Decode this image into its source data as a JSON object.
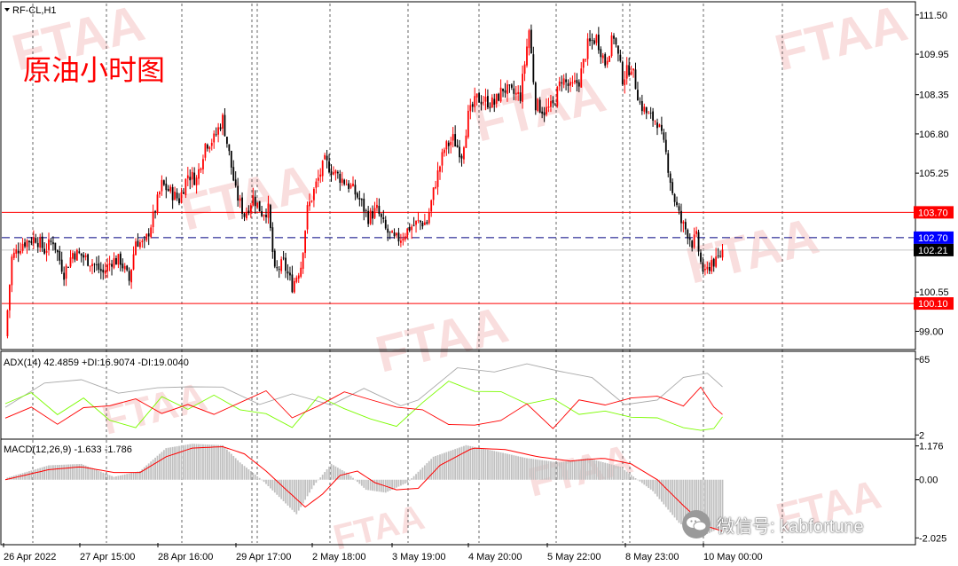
{
  "symbol_header": "RF-CL,H1",
  "chart_title": "原油小时图",
  "watermark_text": "FTAA",
  "wechat_label": "微信号: kabfortune",
  "colors": {
    "bull": "#ff0000",
    "bear": "#000000",
    "adx": "#a9a9a9",
    "plus_di": "#7cfc00",
    "minus_di": "#ff0000",
    "macd_hist": "#c0c0c0",
    "macd_signal": "#ff0000",
    "level_line": "#ff0000",
    "bid_line": "#000080",
    "watermark": "#f4c2c2"
  },
  "time_labels": [
    "26 Apr 2022",
    "27 Apr 15:00",
    "28 Apr 16:00",
    "29 Apr 17:00",
    "2 May 18:00",
    "3 May 19:00",
    "4 May 20:00",
    "5 May 22:00",
    "8 May 23:00",
    "10 May 00:00"
  ],
  "chart_data": [
    {
      "type": "candlestick",
      "panel": "price",
      "title": "RF-CL,H1",
      "timeframe": "H1",
      "y_ticks": [
        111.5,
        109.95,
        108.35,
        106.8,
        105.25,
        103.7,
        102.15,
        100.55,
        99.0
      ],
      "y_tick_labels": [
        "111.50",
        "109.95",
        "108.35",
        "106.80",
        "105.25",
        "103.70",
        "102.15",
        "100.55",
        "99.00"
      ],
      "ylim": [
        98.35,
        111.95
      ],
      "horizontal_levels": [
        {
          "price": 103.7,
          "label": "103.70",
          "style": "solid-red"
        },
        {
          "price": 102.7,
          "label": "102.70",
          "style": "dashed-blue"
        },
        {
          "price": 102.21,
          "label": "102.21",
          "style": "current-price"
        },
        {
          "price": 100.1,
          "label": "100.10",
          "style": "solid-red"
        }
      ],
      "trend_path_close": [
        [
          0,
          98.8
        ],
        [
          3,
          101.9
        ],
        [
          8,
          102.5
        ],
        [
          14,
          102.7
        ],
        [
          18,
          102.2
        ],
        [
          22,
          102.6
        ],
        [
          27,
          101.3
        ],
        [
          31,
          102.1
        ],
        [
          35,
          102.0
        ],
        [
          40,
          101.7
        ],
        [
          45,
          101.3
        ],
        [
          49,
          101.8
        ],
        [
          53,
          101.8
        ],
        [
          57,
          101.0
        ],
        [
          60,
          102.6
        ],
        [
          64,
          102.4
        ],
        [
          68,
          103.5
        ],
        [
          72,
          104.8
        ],
        [
          76,
          104.5
        ],
        [
          80,
          104.2
        ],
        [
          84,
          105.2
        ],
        [
          88,
          105.0
        ],
        [
          92,
          106.4
        ],
        [
          96,
          106.6
        ],
        [
          100,
          107.4
        ],
        [
          103,
          106.0
        ],
        [
          106,
          104.5
        ],
        [
          110,
          103.6
        ],
        [
          114,
          104.3
        ],
        [
          118,
          103.7
        ],
        [
          121,
          103.8
        ],
        [
          124,
          101.3
        ],
        [
          128,
          101.7
        ],
        [
          132,
          100.8
        ],
        [
          136,
          101.6
        ],
        [
          139,
          103.8
        ],
        [
          143,
          104.8
        ],
        [
          147,
          105.7
        ],
        [
          151,
          105.3
        ],
        [
          155,
          105.0
        ],
        [
          159,
          104.7
        ],
        [
          163,
          104.2
        ],
        [
          167,
          103.5
        ],
        [
          171,
          103.8
        ],
        [
          175,
          103.0
        ],
        [
          179,
          102.6
        ],
        [
          182,
          102.7
        ],
        [
          186,
          103.1
        ],
        [
          190,
          103.3
        ],
        [
          194,
          103.3
        ],
        [
          198,
          104.9
        ],
        [
          202,
          106.2
        ],
        [
          206,
          106.6
        ],
        [
          210,
          106.0
        ],
        [
          213,
          107.5
        ],
        [
          217,
          108.2
        ],
        [
          221,
          108.1
        ],
        [
          225,
          108.0
        ],
        [
          229,
          108.6
        ],
        [
          233,
          108.4
        ],
        [
          237,
          108.3
        ],
        [
          241,
          110.9
        ],
        [
          244,
          108.0
        ],
        [
          248,
          107.7
        ],
        [
          252,
          107.9
        ],
        [
          256,
          109.0
        ],
        [
          260,
          108.6
        ],
        [
          264,
          108.9
        ],
        [
          268,
          110.3
        ],
        [
          272,
          110.6
        ],
        [
          276,
          109.6
        ],
        [
          280,
          110.7
        ],
        [
          284,
          109.0
        ],
        [
          288,
          109.5
        ],
        [
          292,
          108.0
        ],
        [
          296,
          107.5
        ],
        [
          300,
          107.3
        ],
        [
          304,
          106.0
        ],
        [
          307,
          104.5
        ],
        [
          311,
          103.3
        ],
        [
          314,
          102.9
        ],
        [
          316,
          102.5
        ],
        [
          318,
          102.7
        ],
        [
          320,
          101.7
        ],
        [
          322,
          101.2
        ],
        [
          325,
          101.8
        ],
        [
          327,
          101.7
        ],
        [
          330,
          102.2
        ]
      ]
    },
    {
      "type": "line",
      "panel": "indicator",
      "title": "ADX(14) 42.4859 +DI:16.9074 -DI:19.0040",
      "name": "ADX(14)",
      "values": {
        "ADX": 42.4859,
        "+DI": 16.9074,
        "-DI": 19.004
      },
      "y_ticks": [
        65,
        2
      ],
      "y_tick_labels": [
        "65",
        "2"
      ],
      "ylim": [
        0,
        70
      ],
      "series": [
        {
          "name": "ADX",
          "x": [
            0,
            18,
            35,
            52,
            70,
            85,
            100,
            117,
            132,
            150,
            165,
            182,
            190,
            208,
            225,
            240,
            255,
            270,
            285,
            300,
            312,
            323,
            330
          ],
          "values": [
            25,
            46,
            47,
            34,
            43,
            42,
            40,
            30,
            37,
            26,
            38,
            28,
            31,
            56,
            57,
            62,
            54,
            47,
            29,
            31,
            48,
            56,
            42
          ]
        },
        {
          "name": "+DI",
          "x": [
            0,
            12,
            24,
            36,
            48,
            60,
            72,
            84,
            96,
            108,
            120,
            132,
            144,
            156,
            168,
            180,
            192,
            204,
            216,
            228,
            240,
            252,
            264,
            276,
            288,
            300,
            312,
            320,
            326,
            330
          ],
          "values": [
            28,
            38,
            18,
            30,
            16,
            8,
            32,
            26,
            36,
            22,
            17,
            10,
            34,
            22,
            18,
            10,
            28,
            44,
            40,
            38,
            26,
            35,
            20,
            21,
            14,
            18,
            8,
            4,
            10,
            17
          ]
        },
        {
          "name": "-DI",
          "x": [
            0,
            12,
            24,
            36,
            48,
            60,
            72,
            84,
            96,
            108,
            120,
            132,
            144,
            156,
            168,
            180,
            192,
            204,
            216,
            228,
            240,
            252,
            264,
            276,
            288,
            300,
            312,
            320,
            326,
            330
          ],
          "values": [
            16,
            26,
            10,
            22,
            28,
            32,
            18,
            30,
            20,
            28,
            36,
            18,
            26,
            36,
            34,
            26,
            22,
            8,
            12,
            14,
            26,
            10,
            32,
            26,
            30,
            36,
            26,
            40,
            28,
            19
          ]
        }
      ]
    },
    {
      "type": "bar",
      "panel": "indicator",
      "title": "MACD(12,26,9) -1.633 -1.786",
      "name": "MACD(12,26,9)",
      "values": {
        "MACD": -1.633,
        "Signal": -1.786
      },
      "y_ticks": [
        1.176,
        0.0,
        -2.025
      ],
      "y_tick_labels": [
        "1.176",
        "0.00",
        "-2.025"
      ],
      "ylim": [
        -2.2,
        1.35
      ],
      "series": [
        {
          "name": "MACD",
          "x": [
            0,
            20,
            35,
            50,
            62,
            74,
            86,
            100,
            108,
            118,
            126,
            134,
            142,
            150,
            158,
            166,
            175,
            185,
            197,
            212,
            225,
            240,
            255,
            268,
            283,
            298,
            310,
            320,
            330
          ],
          "values": [
            0.05,
            0.5,
            0.55,
            0.1,
            0.3,
            1.1,
            1.25,
            1.2,
            0.6,
            0.0,
            -0.6,
            -1.2,
            -0.2,
            0.55,
            0.2,
            -0.35,
            -0.45,
            -0.1,
            0.8,
            1.2,
            1.0,
            0.75,
            0.6,
            0.75,
            0.45,
            -0.4,
            -1.5,
            -2.0,
            -1.633
          ]
        },
        {
          "name": "Signal",
          "x": [
            0,
            20,
            35,
            50,
            62,
            74,
            86,
            100,
            110,
            120,
            130,
            138,
            146,
            154,
            162,
            170,
            180,
            190,
            200,
            215,
            230,
            245,
            260,
            275,
            288,
            300,
            312,
            322,
            330
          ],
          "values": [
            0.0,
            0.35,
            0.45,
            0.25,
            0.25,
            0.8,
            1.1,
            1.15,
            0.9,
            0.3,
            -0.4,
            -0.95,
            -0.5,
            0.15,
            0.3,
            -0.1,
            -0.35,
            -0.3,
            0.5,
            1.1,
            1.05,
            0.8,
            0.65,
            0.75,
            0.55,
            0.0,
            -0.9,
            -1.6,
            -1.786
          ]
        }
      ]
    }
  ]
}
